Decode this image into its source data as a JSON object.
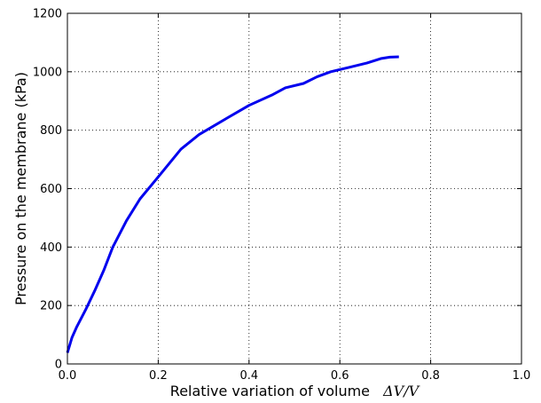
{
  "chart_data": {
    "type": "line",
    "xlabel": "Relative variation of volume",
    "xlabel_math": "ΔV/V",
    "ylabel": "Pressure on the membrane (kPa)",
    "xlim": [
      0.0,
      1.0
    ],
    "ylim": [
      0,
      1200
    ],
    "x_ticks": [
      0.0,
      0.2,
      0.4,
      0.6,
      0.8,
      1.0
    ],
    "x_tick_labels": [
      "0.0",
      "0.2",
      "0.4",
      "0.6",
      "0.8",
      "1.0"
    ],
    "y_ticks": [
      0,
      200,
      400,
      600,
      800,
      1000,
      1200
    ],
    "y_tick_labels": [
      "0",
      "200",
      "400",
      "600",
      "800",
      "1000",
      "1200"
    ],
    "grid": true,
    "grid_style": "dotted",
    "series": [
      {
        "color": "#0000ee",
        "x": [
          0.0,
          0.01,
          0.02,
          0.04,
          0.06,
          0.08,
          0.1,
          0.13,
          0.16,
          0.2,
          0.25,
          0.29,
          0.35,
          0.4,
          0.45,
          0.48,
          0.52,
          0.55,
          0.58,
          0.62,
          0.66,
          0.69,
          0.71,
          0.73
        ],
        "y": [
          38,
          90,
          125,
          185,
          250,
          320,
          400,
          490,
          565,
          640,
          735,
          785,
          840,
          885,
          920,
          945,
          960,
          983,
          1000,
          1015,
          1030,
          1045,
          1050,
          1051
        ]
      }
    ]
  }
}
